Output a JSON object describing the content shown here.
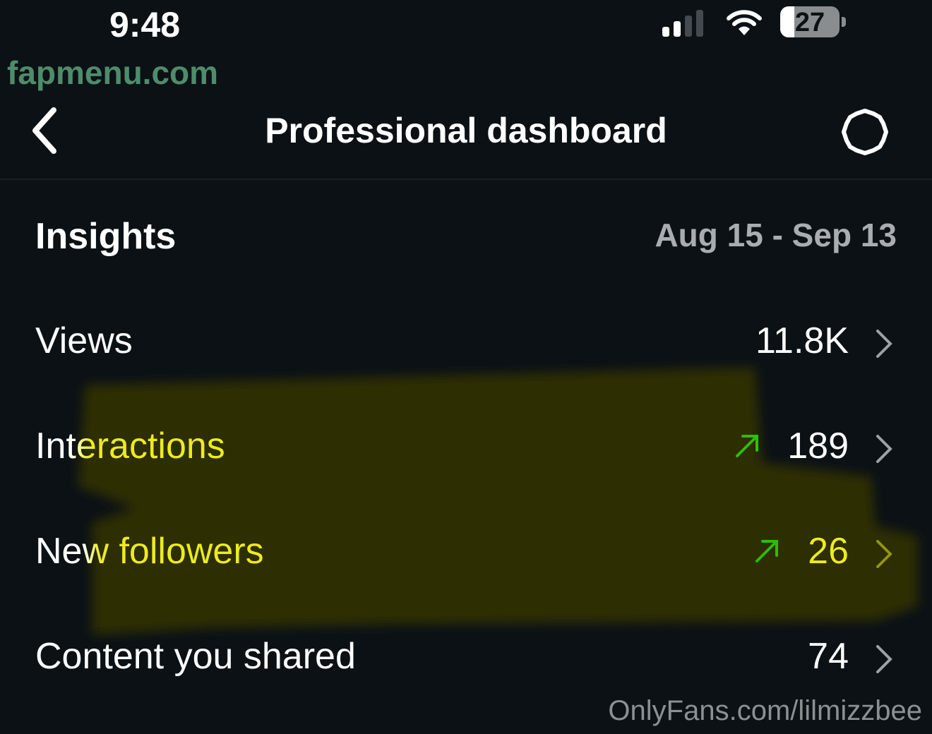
{
  "status_bar": {
    "time": "9:48",
    "battery": "27",
    "signal_bars_on": 2,
    "signal_bars_total": 4
  },
  "header": {
    "title": "Professional dashboard",
    "back_icon": "chevron-left-icon",
    "settings_icon": "gear-icon"
  },
  "insights": {
    "heading": "Insights",
    "date_range": "Aug 15 - Sep 13"
  },
  "rows": [
    {
      "label": "Views",
      "value": "11.8K",
      "trend": null
    },
    {
      "label": "Interactions",
      "value": "189",
      "trend": "up"
    },
    {
      "label": "New followers",
      "value": "26",
      "trend": "up"
    },
    {
      "label": "Content you shared",
      "value": "74",
      "trend": null
    }
  ],
  "watermarks": {
    "top_left": "fapmenu.com",
    "bottom_right": "OnlyFans.com/lilmizzbee"
  },
  "colors": {
    "background": "#0b1115",
    "trend_up": "#2ecc2e",
    "highlight": "#e8e81a",
    "secondary_text": "#a9adb1"
  }
}
